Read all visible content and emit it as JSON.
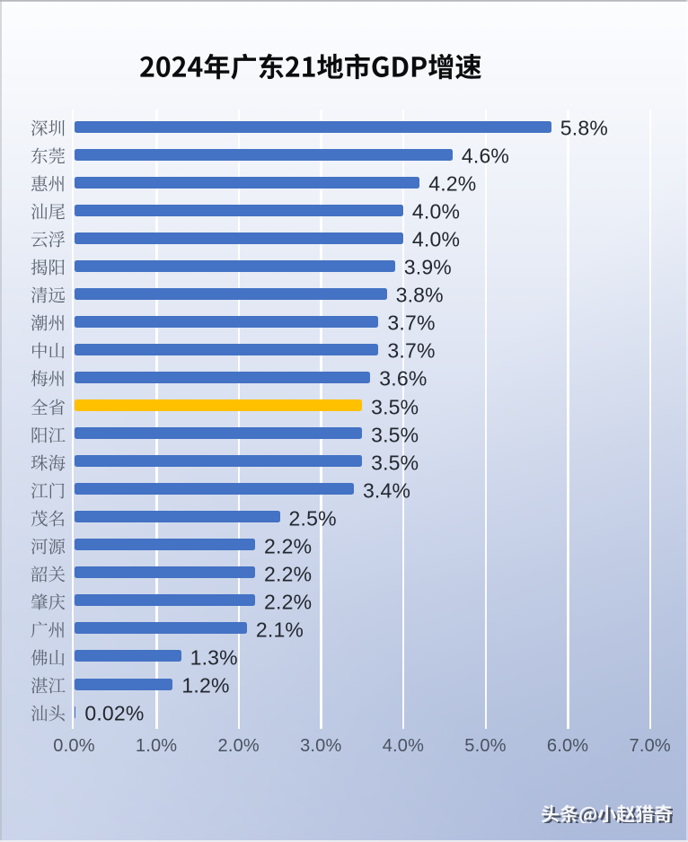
{
  "page": {
    "title": "2024年广东21地市GDP增速"
  },
  "chart_data": {
    "type": "bar",
    "orientation": "horizontal",
    "title": "2024年广东21地市GDP增速",
    "categories": [
      "深圳",
      "东莞",
      "惠州",
      "汕尾",
      "云浮",
      "揭阳",
      "清远",
      "潮州",
      "中山",
      "梅州",
      "全省",
      "阳江",
      "珠海",
      "江门",
      "茂名",
      "河源",
      "韶关",
      "肇庆",
      "广州",
      "佛山",
      "湛江",
      "汕头"
    ],
    "values": [
      5.8,
      4.6,
      4.2,
      4.0,
      4.0,
      3.9,
      3.8,
      3.7,
      3.7,
      3.6,
      3.5,
      3.5,
      3.5,
      3.4,
      2.5,
      2.2,
      2.2,
      2.2,
      2.1,
      1.3,
      1.2,
      0.02
    ],
    "value_labels": [
      "5.8%",
      "4.6%",
      "4.2%",
      "4.0%",
      "4.0%",
      "3.9%",
      "3.8%",
      "3.7%",
      "3.7%",
      "3.6%",
      "3.5%",
      "3.5%",
      "3.5%",
      "3.4%",
      "2.5%",
      "2.2%",
      "2.2%",
      "2.2%",
      "2.1%",
      "1.3%",
      "1.2%",
      "0.02%"
    ],
    "highlight_category": "全省",
    "x_ticks": [
      "0.0%",
      "1.0%",
      "2.0%",
      "3.0%",
      "4.0%",
      "5.0%",
      "6.0%",
      "7.0%"
    ],
    "xlim": [
      0,
      7
    ],
    "grid": true,
    "legend": false,
    "colors": {
      "bar": "#4472C4",
      "highlight": "#FFC000",
      "grid_line": "#FFFFFF",
      "category_label": "#5B6370",
      "value_label": "#23272F",
      "tick_label": "#4A5260",
      "title": "#0B0C0E"
    }
  },
  "watermark": {
    "text": "头条@小赵猎奇"
  }
}
